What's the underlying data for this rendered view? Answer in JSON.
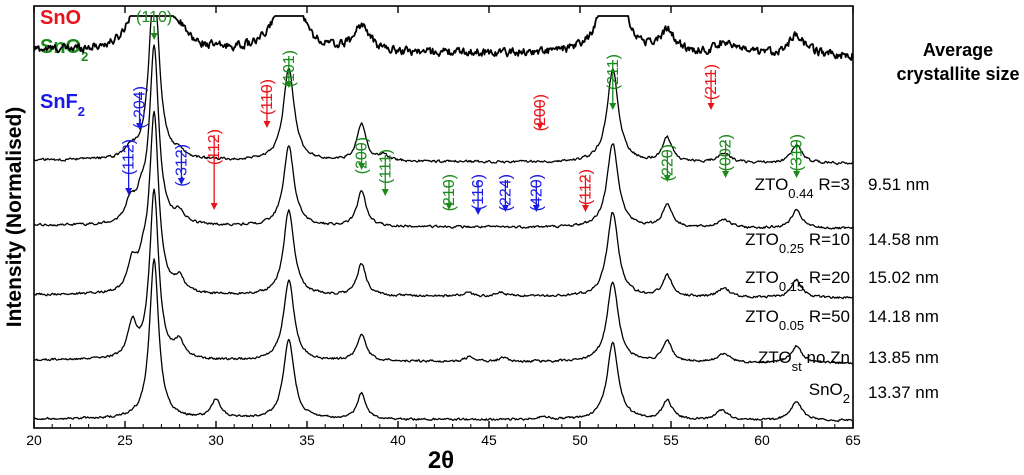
{
  "chart_data": {
    "type": "line",
    "xlabel": "2θ",
    "ylabel": "Intensity (Normalised)",
    "xlim": [
      20,
      65
    ],
    "x_ticks": [
      20,
      25,
      30,
      35,
      40,
      45,
      50,
      55,
      60,
      65
    ],
    "grid": false,
    "legend": [
      {
        "phase": "SnO",
        "text": "SnO",
        "color": "#e8141b"
      },
      {
        "phase": "SnO2",
        "text": "SnO",
        "sub": "2",
        "color": "#1b8a1b"
      },
      {
        "phase": "SnF2",
        "text": "SnF",
        "sub": "2",
        "color": "#1a1ae6"
      }
    ],
    "size_title_lines": [
      "Average",
      "crystallite size"
    ],
    "series": [
      {
        "key": "s044",
        "label_main": "ZTO",
        "label_sub": "0.44",
        "label_rest": " R=3",
        "size": "9.51 nm",
        "baseline": 0.86,
        "amp": 2.55,
        "noise": 0.034,
        "bkg": 0.05,
        "peaks": [
          [
            26.6,
            1.0,
            0.42
          ],
          [
            34.0,
            0.52,
            0.55
          ],
          [
            38.0,
            0.12,
            0.5
          ],
          [
            51.8,
            0.48,
            0.6
          ],
          [
            54.8,
            0.1,
            0.5
          ],
          [
            58.0,
            0.06,
            0.6
          ],
          [
            61.9,
            0.09,
            0.6
          ],
          [
            25.3,
            0.07,
            0.4
          ],
          [
            28.0,
            0.05,
            0.5
          ]
        ]
      },
      {
        "key": "s025",
        "label_main": "ZTO",
        "label_sub": "0.25",
        "label_rest": " R=10",
        "size": "14.58 nm",
        "baseline": 0.61,
        "amp": 2.2,
        "noise": 0.012,
        "bkg": 0.03,
        "peaks": [
          [
            26.6,
            1.0,
            0.32
          ],
          [
            34.0,
            0.5,
            0.36
          ],
          [
            38.0,
            0.2,
            0.3
          ],
          [
            39.2,
            0.03,
            0.3
          ],
          [
            51.8,
            0.5,
            0.38
          ],
          [
            54.8,
            0.13,
            0.32
          ],
          [
            57.9,
            0.05,
            0.4
          ],
          [
            61.9,
            0.1,
            0.35
          ],
          [
            25.3,
            0.05,
            0.3
          ],
          [
            28.0,
            0.03,
            0.3
          ]
        ]
      },
      {
        "key": "s015",
        "label_main": "ZTO",
        "label_sub": "0.15",
        "label_rest": " R=20",
        "size": "15.02 nm",
        "baseline": 0.455,
        "amp": 2.1,
        "noise": 0.012,
        "bkg": 0.03,
        "peaks": [
          [
            26.6,
            1.0,
            0.3
          ],
          [
            34.0,
            0.45,
            0.35
          ],
          [
            38.0,
            0.2,
            0.3
          ],
          [
            51.8,
            0.48,
            0.37
          ],
          [
            54.8,
            0.13,
            0.32
          ],
          [
            57.9,
            0.05,
            0.4
          ],
          [
            61.9,
            0.1,
            0.35
          ],
          [
            25.3,
            0.12,
            0.3
          ],
          [
            25.9,
            0.12,
            0.3
          ],
          [
            28.0,
            0.06,
            0.3
          ]
        ]
      },
      {
        "key": "s005",
        "label_main": "ZTO",
        "label_sub": "0.05",
        "label_rest": " R=50",
        "size": "14.18 nm",
        "baseline": 0.29,
        "amp": 2.1,
        "noise": 0.012,
        "bkg": 0.03,
        "peaks": [
          [
            26.6,
            1.0,
            0.3
          ],
          [
            34.0,
            0.48,
            0.35
          ],
          [
            38.0,
            0.18,
            0.3
          ],
          [
            51.8,
            0.48,
            0.37
          ],
          [
            54.8,
            0.12,
            0.32
          ],
          [
            57.9,
            0.05,
            0.4
          ],
          [
            61.9,
            0.1,
            0.35
          ],
          [
            25.4,
            0.16,
            0.3
          ],
          [
            26.0,
            0.12,
            0.3
          ],
          [
            28.0,
            0.08,
            0.3
          ],
          [
            43.8,
            0.02,
            0.3
          ],
          [
            45.7,
            0.02,
            0.3
          ]
        ]
      },
      {
        "key": "sst",
        "label_main": "ZTO",
        "label_sub": "st",
        "label_rest": " no Zn",
        "size": "13.85 nm",
        "baseline": 0.135,
        "amp": 2.0,
        "noise": 0.012,
        "bkg": 0.03,
        "peaks": [
          [
            26.6,
            1.0,
            0.3
          ],
          [
            34.0,
            0.48,
            0.35
          ],
          [
            38.0,
            0.16,
            0.3
          ],
          [
            51.8,
            0.48,
            0.37
          ],
          [
            54.8,
            0.12,
            0.32
          ],
          [
            57.9,
            0.05,
            0.4
          ],
          [
            61.9,
            0.1,
            0.35
          ],
          [
            25.4,
            0.2,
            0.3
          ],
          [
            28.0,
            0.1,
            0.3
          ],
          [
            43.9,
            0.025,
            0.3
          ],
          [
            45.8,
            0.025,
            0.3
          ]
        ]
      },
      {
        "key": "ssno2",
        "label_main": "SnO",
        "label_sub": "2",
        "label_rest": "",
        "size": "13.37 nm",
        "baseline": 0.0,
        "amp": 1.9,
        "noise": 0.012,
        "bkg": 0.02,
        "peaks": [
          [
            26.6,
            1.0,
            0.3
          ],
          [
            30.0,
            0.12,
            0.3
          ],
          [
            34.0,
            0.5,
            0.35
          ],
          [
            38.0,
            0.16,
            0.3
          ],
          [
            48.0,
            0.02,
            0.3
          ],
          [
            51.8,
            0.48,
            0.37
          ],
          [
            54.8,
            0.12,
            0.32
          ],
          [
            57.8,
            0.06,
            0.4
          ],
          [
            61.9,
            0.12,
            0.35
          ]
        ]
      }
    ],
    "annotations": [
      {
        "phase": "SnO2",
        "text": "(110)",
        "x": 26.6
      },
      {
        "phase": "SnO2",
        "text": "(101)",
        "x": 34.0
      },
      {
        "phase": "SnO2",
        "text": "(200)",
        "x": 38.0
      },
      {
        "phase": "SnO2",
        "text": "(111)",
        "x": 39.3
      },
      {
        "phase": "SnO2",
        "text": "(210)",
        "x": 42.8
      },
      {
        "phase": "SnO2",
        "text": "(211)",
        "x": 51.8
      },
      {
        "phase": "SnO2",
        "text": "(220)",
        "x": 54.8
      },
      {
        "phase": "SnO2",
        "text": "(002)",
        "x": 58.0
      },
      {
        "phase": "SnO2",
        "text": "(310)",
        "x": 61.9
      },
      {
        "phase": "SnO",
        "text": "(112)",
        "x": 29.9
      },
      {
        "phase": "SnO",
        "text": "(110)",
        "x": 32.8
      },
      {
        "phase": "SnO",
        "text": "(200)",
        "x": 47.8
      },
      {
        "phase": "SnO",
        "text": "(112)",
        "x": 50.3
      },
      {
        "phase": "SnO",
        "text": "(211)",
        "x": 57.2
      },
      {
        "phase": "SnF2",
        "text": "(112)",
        "x": 25.2
      },
      {
        "phase": "SnF2",
        "text": "(-204)",
        "x": 25.8
      },
      {
        "phase": "SnF2",
        "text": "(-312)",
        "x": 28.1
      },
      {
        "phase": "SnF2",
        "text": "(116)",
        "x": 44.4
      },
      {
        "phase": "SnF2",
        "text": "(224)",
        "x": 45.9
      },
      {
        "phase": "SnF2",
        "text": "(420)",
        "x": 47.6
      }
    ]
  }
}
